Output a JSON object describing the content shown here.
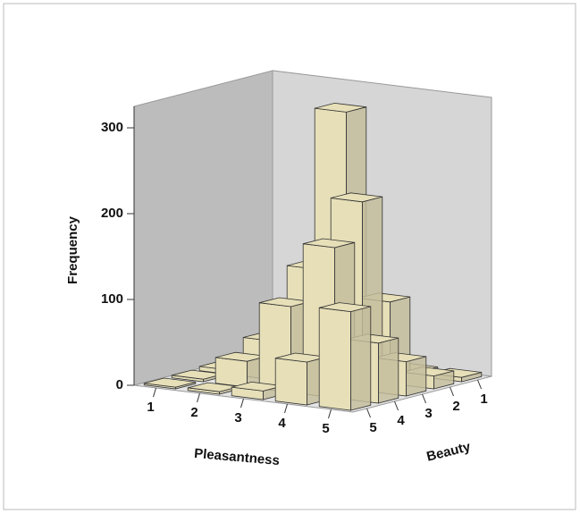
{
  "chart_data": {
    "type": "bar3d",
    "y_label": "Frequency",
    "x_label": "Pleasantness",
    "z_label": "Beauty",
    "categories": [
      1,
      2,
      3,
      4,
      5
    ],
    "depth_categories": [
      1,
      2,
      3,
      4,
      5
    ],
    "values": [
      [
        1,
        5,
        10,
        5,
        5
      ],
      [
        2,
        10,
        310,
        95,
        15
      ],
      [
        5,
        45,
        135,
        220,
        40
      ],
      [
        3,
        30,
        100,
        175,
        70
      ],
      [
        2,
        3,
        10,
        50,
        115
      ]
    ],
    "color": "#e6dfb8",
    "ylim": [
      0,
      325
    ],
    "yticks": [
      0,
      100,
      200,
      300
    ]
  }
}
